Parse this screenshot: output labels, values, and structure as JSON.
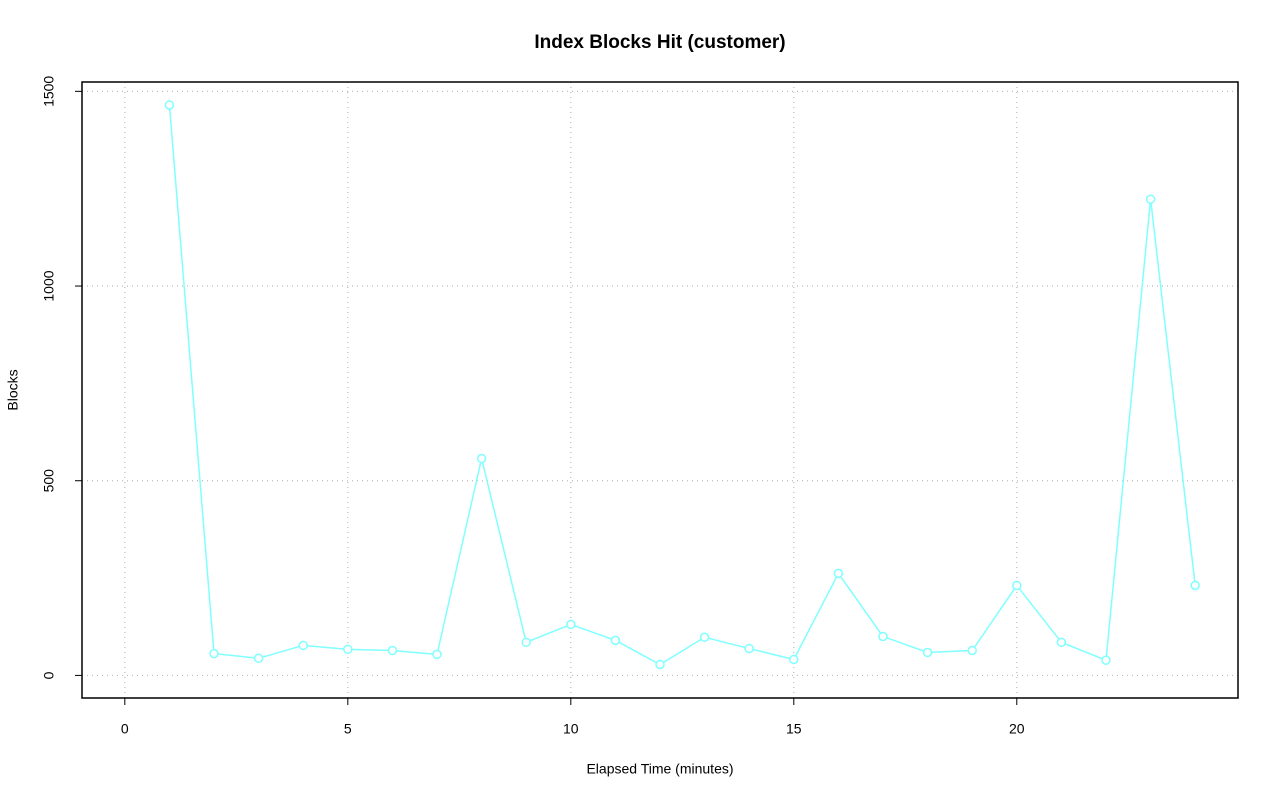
{
  "chart_data": {
    "type": "line",
    "title": "Index Blocks Hit (customer)",
    "x_label": "Elapsed Time (minutes)",
    "y_label": "Blocks",
    "x": [
      1,
      2,
      3,
      4,
      5,
      6,
      7,
      8,
      9,
      10,
      11,
      12,
      13,
      14,
      15,
      16,
      17,
      18,
      19,
      20,
      21,
      22,
      23,
      24
    ],
    "values": [
      1465,
      56,
      44,
      77,
      67,
      64,
      54,
      557,
      85,
      131,
      90,
      28,
      98,
      69,
      41,
      262,
      100,
      59,
      64,
      231,
      85,
      39,
      1223,
      231
    ],
    "color": "#80ffff",
    "xlim": [
      -0.96,
      24.96
    ],
    "xticks": [
      0,
      5,
      10,
      15,
      20
    ],
    "ylim": [
      -58,
      1524
    ],
    "yticks": [
      0,
      500,
      1000,
      1500
    ],
    "grid": true
  }
}
